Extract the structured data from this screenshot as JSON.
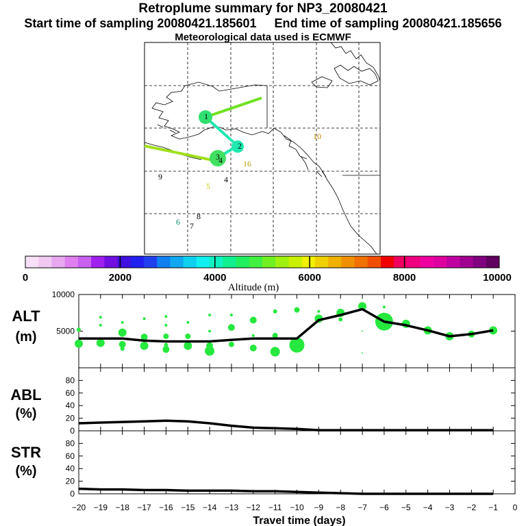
{
  "header": {
    "title": "Retroplume summary for NP3_20080421",
    "start_label": "Start time of sampling 20080421.185601",
    "end_label": "End time of sampling 20080421.185656",
    "met_label": "Meteorological data used is ECMWF"
  },
  "map": {
    "day_labels": [
      {
        "text": "1",
        "color": "#000000"
      },
      {
        "text": "2",
        "color": "#000000"
      },
      {
        "text": "3",
        "color": "#000000"
      },
      {
        "text": "4",
        "color": "#000000"
      },
      {
        "text": "4",
        "color": "#000000"
      },
      {
        "text": "5",
        "color": "#c8c800"
      },
      {
        "text": "6",
        "color": "#0a8a6a"
      },
      {
        "text": "7",
        "color": "#000000"
      },
      {
        "text": "8",
        "color": "#000000"
      },
      {
        "text": "9",
        "color": "#000000"
      },
      {
        "text": "10",
        "color": "#c88200"
      },
      {
        "text": "16",
        "color": "#b8a000"
      }
    ]
  },
  "colorbar": {
    "colors": [
      "#f8e0f8",
      "#f0c8f0",
      "#e8a8f0",
      "#e080f0",
      "#c860f0",
      "#a020f0",
      "#7010e0",
      "#4010e0",
      "#2020f0",
      "#2040f0",
      "#1080f0",
      "#10a8f0",
      "#10d0f0",
      "#10f0f0",
      "#10f0c0",
      "#10f090",
      "#20f060",
      "#40f040",
      "#70f020",
      "#a0f010",
      "#c8f000",
      "#f0f000",
      "#f0d000",
      "#f0b000",
      "#f09000",
      "#f07000",
      "#f05000",
      "#f00000",
      "#f00060",
      "#f00080",
      "#f000a0",
      "#e000a0",
      "#c000a0",
      "#a00090",
      "#800080",
      "#600060"
    ],
    "tick_labels": [
      "0",
      "2000",
      "4000",
      "6000",
      "8000",
      "10000"
    ],
    "label": "Altitude (m)"
  },
  "chart_data": {
    "type": "line",
    "xlabel": "Travel time (days)",
    "x_ticks": [
      -20,
      -19,
      -18,
      -17,
      -16,
      -15,
      -14,
      -13,
      -12,
      -11,
      -10,
      -9,
      -8,
      -7,
      -6,
      -5,
      -4,
      -3,
      -2,
      -1,
      0
    ],
    "x_tick_labels": [
      "−20",
      "−19",
      "−18",
      "−17",
      "−16",
      "−15",
      "−14",
      "−13",
      "−12",
      "−11",
      "−10",
      "−9",
      "−8",
      "−7",
      "−6",
      "−5",
      "−4",
      "−3",
      "−2",
      "−1",
      "0"
    ],
    "xlim": [
      -20,
      0
    ],
    "panels": [
      {
        "name": "ALT",
        "ylabel_line1": "ALT",
        "ylabel_line2": "(m)",
        "ylim": [
          0,
          10000
        ],
        "y_ticks": [
          10000,
          5000
        ],
        "y_tick_labels": [
          "10000",
          "5000"
        ],
        "x": [
          -20,
          -19,
          -18,
          -17,
          -16,
          -15,
          -14,
          -13,
          -12,
          -11,
          -10,
          -9,
          -8,
          -7,
          -6,
          -5,
          -4,
          -3,
          -2,
          -1
        ],
        "values": [
          4000,
          4000,
          4000,
          3700,
          3600,
          3600,
          3600,
          3800,
          4000,
          4000,
          4000,
          6500,
          7200,
          8000,
          6300,
          5800,
          5100,
          4300,
          4600,
          5100
        ],
        "clusters": [
          {
            "x": -20,
            "y": 5200,
            "r": 3
          },
          {
            "x": -20,
            "y": 3300,
            "r": 6
          },
          {
            "x": -19,
            "y": 6900,
            "r": 2
          },
          {
            "x": -19,
            "y": 5800,
            "r": 2
          },
          {
            "x": -19,
            "y": 3400,
            "r": 6
          },
          {
            "x": -18,
            "y": 6200,
            "r": 2
          },
          {
            "x": -18,
            "y": 4800,
            "r": 6
          },
          {
            "x": -18,
            "y": 3200,
            "r": 5
          },
          {
            "x": -18,
            "y": 2600,
            "r": 3
          },
          {
            "x": -17,
            "y": 6700,
            "r": 2
          },
          {
            "x": -17,
            "y": 4200,
            "r": 5
          },
          {
            "x": -17,
            "y": 3000,
            "r": 6
          },
          {
            "x": -16,
            "y": 7000,
            "r": 2
          },
          {
            "x": -16,
            "y": 5800,
            "r": 2
          },
          {
            "x": -16,
            "y": 4300,
            "r": 4
          },
          {
            "x": -16,
            "y": 2500,
            "r": 5
          },
          {
            "x": -16,
            "y": 3100,
            "r": 3
          },
          {
            "x": -15,
            "y": 6200,
            "r": 2
          },
          {
            "x": -15,
            "y": 4300,
            "r": 4
          },
          {
            "x": -15,
            "y": 3000,
            "r": 6
          },
          {
            "x": -14,
            "y": 7200,
            "r": 2
          },
          {
            "x": -14,
            "y": 5000,
            "r": 2
          },
          {
            "x": -14,
            "y": 3000,
            "r": 5
          },
          {
            "x": -14,
            "y": 2300,
            "r": 7
          },
          {
            "x": -13,
            "y": 7200,
            "r": 2
          },
          {
            "x": -13,
            "y": 5500,
            "r": 5
          },
          {
            "x": -13,
            "y": 3200,
            "r": 4
          },
          {
            "x": -12,
            "y": 6500,
            "r": 5
          },
          {
            "x": -12,
            "y": 4400,
            "r": 2
          },
          {
            "x": -12,
            "y": 2700,
            "r": 5
          },
          {
            "x": -11,
            "y": 7700,
            "r": 3
          },
          {
            "x": -11,
            "y": 4400,
            "r": 4
          },
          {
            "x": -11,
            "y": 2200,
            "r": 7
          },
          {
            "x": -10,
            "y": 7900,
            "r": 4
          },
          {
            "x": -10,
            "y": 3100,
            "r": 11
          },
          {
            "x": -9,
            "y": 6700,
            "r": 6
          },
          {
            "x": -9,
            "y": 7700,
            "r": 2
          },
          {
            "x": -8,
            "y": 7500,
            "r": 6
          },
          {
            "x": -8,
            "y": 6600,
            "r": 3
          },
          {
            "x": -7,
            "y": 8400,
            "r": 6
          },
          {
            "x": -7,
            "y": 5000,
            "r": 1
          },
          {
            "x": -7,
            "y": 2000,
            "r": 1
          },
          {
            "x": -6,
            "y": 6300,
            "r": 13
          },
          {
            "x": -6,
            "y": 8300,
            "r": 2
          },
          {
            "x": -5,
            "y": 6000,
            "r": 6
          },
          {
            "x": -4,
            "y": 5100,
            "r": 6
          },
          {
            "x": -3,
            "y": 4300,
            "r": 6
          },
          {
            "x": -2,
            "y": 4600,
            "r": 5
          },
          {
            "x": -1,
            "y": 5100,
            "r": 6
          }
        ]
      },
      {
        "name": "ABL",
        "ylabel_line1": "ABL",
        "ylabel_line2": "(%)",
        "ylim": [
          0,
          100
        ],
        "y_ticks": [
          0,
          20,
          40,
          60,
          80
        ],
        "y_tick_labels": [
          "0",
          "20",
          "40",
          "60",
          "80"
        ],
        "x": [
          -20,
          -19,
          -18,
          -17,
          -16,
          -15,
          -14,
          -13,
          -12,
          -11,
          -10,
          -9,
          -8,
          -7,
          -6,
          -5,
          -4,
          -3,
          -2,
          -1
        ],
        "values": [
          12,
          13,
          14,
          15,
          16,
          15,
          12,
          8,
          5,
          4,
          3,
          1,
          1,
          1,
          1,
          1,
          1,
          1,
          1,
          1
        ]
      },
      {
        "name": "STR",
        "ylabel_line1": "STR",
        "ylabel_line2": "(%)",
        "ylim": [
          0,
          100
        ],
        "y_ticks": [
          0,
          20,
          40,
          60,
          80
        ],
        "y_tick_labels": [
          "0",
          "20",
          "40",
          "60",
          "80"
        ],
        "x": [
          -20,
          -19,
          -18,
          -17,
          -16,
          -15,
          -14,
          -13,
          -12,
          -11,
          -10,
          -9,
          -8,
          -7,
          -6,
          -5,
          -4,
          -3,
          -2,
          -1
        ],
        "values": [
          8,
          7,
          7,
          6,
          6,
          5,
          5,
          5,
          4,
          4,
          3,
          2,
          1,
          0,
          0,
          0,
          0,
          0,
          0,
          0
        ]
      }
    ]
  }
}
